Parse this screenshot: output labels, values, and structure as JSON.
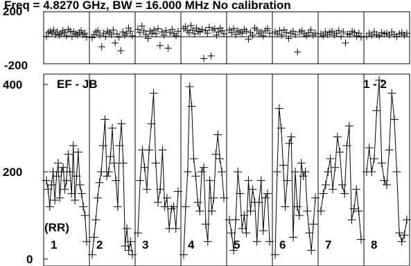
{
  "chart_data": {
    "type": "line",
    "title": "Freq = 4.8270 GHz, BW = 16.000 MHz  No calibration",
    "panels": {
      "phase": {
        "ylim": [
          -200,
          200
        ],
        "ytick_labels": [
          "200",
          "-200"
        ],
        "reference_line": 0
      },
      "amplitude": {
        "ylim": [
          0,
          400
        ],
        "ytick_labels": [
          "400",
          "200",
          "0"
        ],
        "baseline_label": "EF - JB",
        "polarization_label": "(RR)",
        "if_pair_label": "1 - 2"
      }
    },
    "segment_labels": [
      "1",
      "2",
      "3",
      "4",
      "5",
      "6",
      "7",
      "8"
    ],
    "phase_series": [
      [
        10,
        40,
        50,
        35,
        60,
        25,
        45,
        20,
        30,
        55,
        40,
        15,
        65,
        50,
        10,
        45,
        30,
        20,
        40,
        55,
        25,
        35,
        5
      ],
      [
        0,
        25,
        45,
        55,
        20,
        -70,
        35,
        10,
        50,
        40,
        25,
        60,
        -40,
        30,
        5,
        -100,
        45,
        20,
        35,
        75,
        50,
        15
      ],
      [
        65,
        40,
        90,
        55,
        25,
        -5,
        50,
        35,
        60,
        30,
        70,
        -60,
        45,
        20,
        55,
        -80,
        40,
        65,
        30,
        15,
        50
      ],
      [
        70,
        85,
        55,
        40,
        95,
        60,
        30,
        75,
        50,
        45,
        65,
        -160,
        55,
        35,
        80,
        -140,
        60,
        70,
        20,
        45,
        75,
        55,
        30
      ],
      [
        60,
        40,
        70,
        25,
        55,
        45,
        35,
        65,
        50,
        -10,
        40,
        20,
        75,
        60,
        30,
        45,
        15,
        55,
        70,
        35
      ],
      [
        45,
        30,
        55,
        20,
        60,
        40,
        -5,
        35,
        50,
        25,
        -110,
        45,
        55,
        30,
        15,
        40,
        60,
        20,
        35
      ],
      [
        30,
        15,
        45,
        25,
        40,
        50,
        20,
        35,
        55,
        10,
        45,
        -40,
        30,
        25,
        50,
        40,
        15,
        35,
        5
      ],
      [
        10,
        35,
        20,
        45,
        25,
        15,
        40,
        30,
        35,
        20,
        45,
        25,
        10,
        30,
        40,
        20,
        35
      ]
    ],
    "amplitude_series": [
      [
        180,
        160,
        120,
        170,
        200,
        135,
        190,
        220,
        140,
        200,
        210,
        160,
        180,
        240,
        200,
        150,
        260,
        135,
        190,
        245,
        170,
        150,
        120,
        100,
        40
      ],
      [
        10,
        50,
        90,
        140,
        175,
        200,
        260,
        320,
        190,
        200,
        235,
        300,
        220,
        180,
        120,
        260,
        310,
        220,
        30,
        70,
        20,
        40,
        10
      ],
      [
        60,
        180,
        250,
        210,
        160,
        250,
        310,
        380,
        220,
        130,
        160,
        250,
        120,
        140,
        70,
        115,
        120,
        70,
        155
      ],
      [
        10,
        120,
        200,
        395,
        350,
        230,
        190,
        130,
        110,
        200,
        210,
        80,
        40,
        180,
        110,
        140,
        240,
        285,
        230,
        200,
        140
      ],
      [
        90,
        60,
        20,
        90,
        200,
        150,
        70,
        100,
        60,
        180,
        110,
        160,
        130,
        40,
        130,
        180,
        65,
        140,
        150,
        40
      ],
      [
        10,
        200,
        345,
        300,
        215,
        120,
        180,
        265,
        280,
        50,
        200,
        120,
        100,
        220,
        190,
        200,
        110,
        60,
        20,
        80,
        140
      ],
      [
        110,
        150,
        170,
        200,
        230,
        160,
        210,
        280,
        245,
        170,
        150,
        260,
        305,
        90,
        115,
        160,
        110,
        45
      ],
      [
        200,
        255,
        200,
        230,
        340,
        410,
        220,
        180,
        170,
        250,
        380,
        320,
        200,
        60,
        40,
        55,
        90
      ]
    ]
  }
}
